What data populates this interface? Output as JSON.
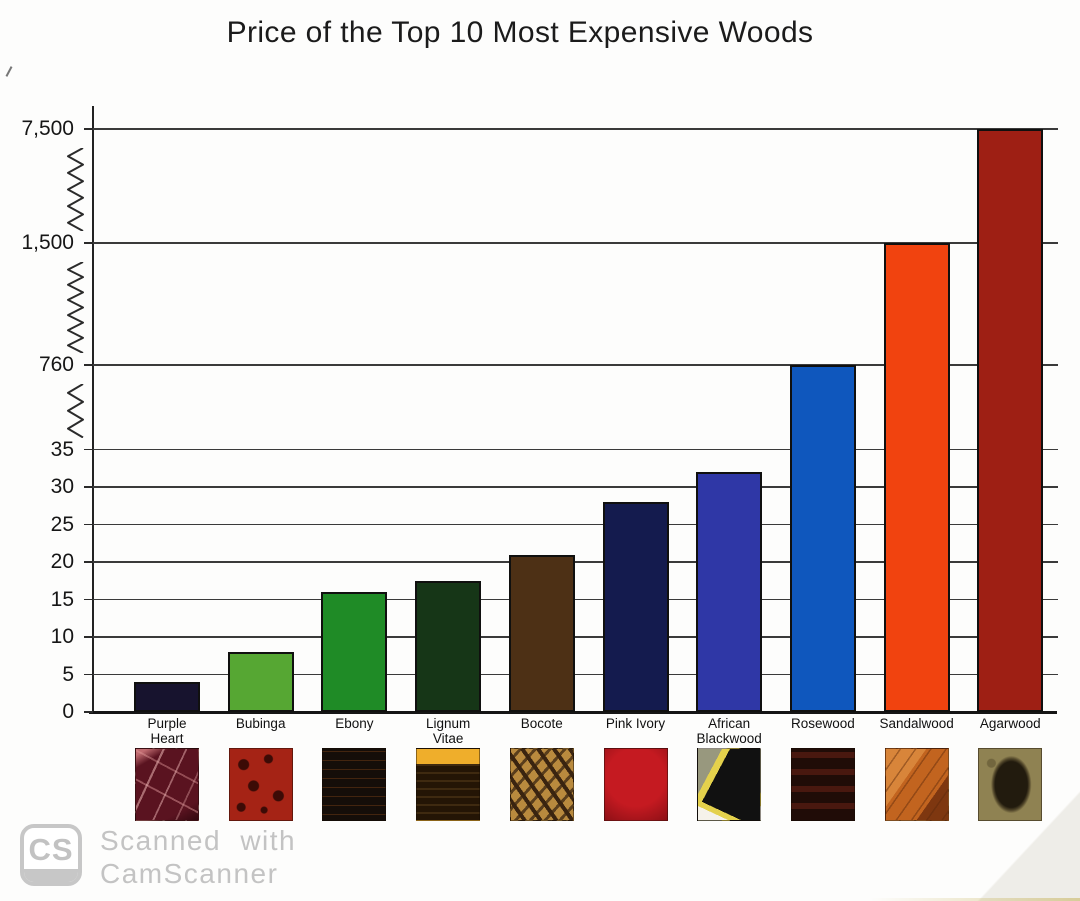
{
  "title": "Price of the Top 10 Most Expensive Woods",
  "chart_data": {
    "type": "bar",
    "title": "Price of the Top 10 Most Expensive Woods",
    "xlabel": "",
    "ylabel": "",
    "categories": [
      "Purple\nHeart",
      "Bubinga",
      "Ebony",
      "Lignum\nVitae",
      "Bocote",
      "Pink Ivory",
      "African\nBlackwood",
      "Rosewood",
      "Sandalwood",
      "Agarwood"
    ],
    "values": [
      4,
      8,
      16,
      17.5,
      21,
      28,
      32,
      760,
      1500,
      7500
    ],
    "bar_colors": [
      "#17132e",
      "#56a733",
      "#1f8b26",
      "#163617",
      "#4d3015",
      "#141b4e",
      "#2f37a6",
      "#0f57bd",
      "#f1430f",
      "#9e1f14"
    ],
    "y_ticks": [
      {
        "value": 0,
        "label": "0"
      },
      {
        "value": 5,
        "label": "5"
      },
      {
        "value": 10,
        "label": "10"
      },
      {
        "value": 15,
        "label": "15"
      },
      {
        "value": 20,
        "label": "20"
      },
      {
        "value": 25,
        "label": "25"
      },
      {
        "value": 30,
        "label": "30"
      },
      {
        "value": 35,
        "label": "35"
      },
      {
        "value": 760,
        "label": "760"
      },
      {
        "value": 1500,
        "label": "1,500"
      },
      {
        "value": 7500,
        "label": "7,500"
      }
    ],
    "axis_breaks": [
      [
        35,
        760
      ],
      [
        760,
        1500
      ],
      [
        1500,
        7500
      ]
    ],
    "ylim": [
      0,
      7500
    ],
    "grid": true,
    "legend": false,
    "broken_axis": true
  },
  "wood_samples": [
    {
      "name": "Purple Heart",
      "pattern": "streaks",
      "colors": {
        "base": "#5a1320",
        "accent": "#c06b70",
        "extra": ""
      }
    },
    {
      "name": "Bubinga",
      "pattern": "blotches",
      "colors": {
        "base": "#a52315",
        "accent": "#3c0b06",
        "extra": ""
      }
    },
    {
      "name": "Ebony",
      "pattern": "finelines",
      "colors": {
        "base": "#150e09",
        "accent": "#43250f",
        "extra": ""
      }
    },
    {
      "name": "Lignum Vitae",
      "pattern": "topband",
      "colors": {
        "base": "#241505",
        "accent": "#efae2b",
        "extra": ""
      }
    },
    {
      "name": "Bocote",
      "pattern": "lattice",
      "colors": {
        "base": "#b98a3e",
        "accent": "#3a2410",
        "extra": ""
      }
    },
    {
      "name": "Pink Ivory",
      "pattern": "solid",
      "colors": {
        "base": "#8e1016",
        "accent": "#c51a21",
        "extra": ""
      }
    },
    {
      "name": "African Blackwood",
      "pattern": "wedge",
      "colors": {
        "base": "#111111",
        "accent": "#e4d14c",
        "extra": "#98987e"
      }
    },
    {
      "name": "Rosewood",
      "pattern": "bands",
      "colors": {
        "base": "#200c07",
        "accent": "#49180f",
        "extra": ""
      }
    },
    {
      "name": "Sandalwood",
      "pattern": "chunks",
      "colors": {
        "base": "#c2641f",
        "accent": "#d8853a",
        "extra": "#7e3710"
      }
    },
    {
      "name": "Agarwood",
      "pattern": "blob",
      "colors": {
        "base": "#8f8252",
        "accent": "#221b0e",
        "extra": ""
      }
    }
  ],
  "watermark": {
    "logo": "CS",
    "line1": "Scanned with",
    "line2": "CamScanner"
  }
}
